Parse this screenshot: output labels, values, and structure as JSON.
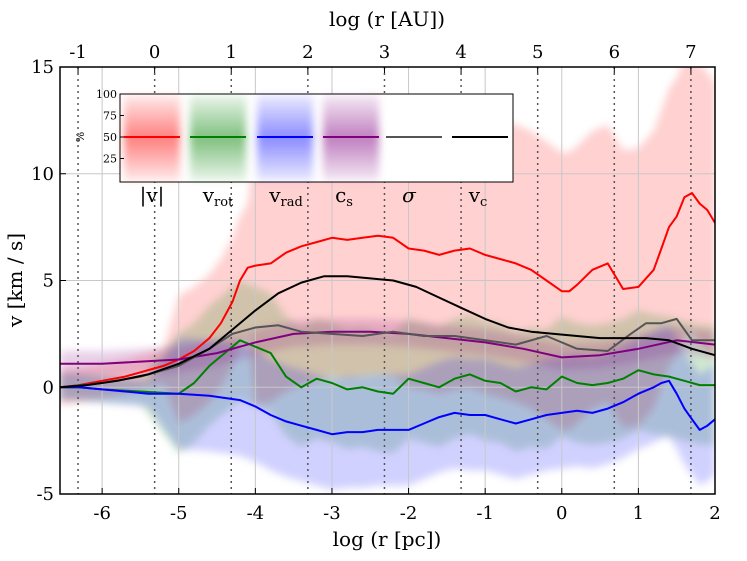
{
  "chart_data": {
    "type": "line",
    "xlabel": "log (r [pc])",
    "ylabel": "v [km / s]",
    "top_xlabel": "log (r [AU])",
    "xlim": [
      -6.55,
      2.0
    ],
    "ylim": [
      -5,
      15
    ],
    "grid": true,
    "xticks": [
      -6,
      -5,
      -4,
      -3,
      -2,
      -1,
      0,
      1,
      2
    ],
    "yticks": [
      -5,
      0,
      5,
      10,
      15
    ],
    "top_ticks": [
      -1,
      0,
      1,
      2,
      3,
      4,
      5,
      6,
      7
    ],
    "top_tick_offset_pc": -5.3145,
    "vertical_dotted_lines": [
      -6.3145,
      -5.3145,
      -4.3145,
      -3.3145,
      -2.3145,
      -1.3145,
      -0.3145,
      0.6855,
      1.6855
    ],
    "series": [
      {
        "name": "|v|",
        "color": "#ff0000",
        "x": [
          -6.55,
          -6.3,
          -6.0,
          -5.7,
          -5.5,
          -5.2,
          -5.0,
          -4.8,
          -4.6,
          -4.45,
          -4.3,
          -4.2,
          -4.1,
          -4.0,
          -3.8,
          -3.6,
          -3.4,
          -3.2,
          -3.0,
          -2.8,
          -2.6,
          -2.4,
          -2.2,
          -2.0,
          -1.8,
          -1.6,
          -1.4,
          -1.2,
          -1.0,
          -0.8,
          -0.6,
          -0.4,
          -0.2,
          0.0,
          0.1,
          0.2,
          0.4,
          0.6,
          0.8,
          1.0,
          1.2,
          1.3,
          1.4,
          1.5,
          1.6,
          1.7,
          1.8,
          1.9,
          2.0
        ],
        "y": [
          0.0,
          0.1,
          0.3,
          0.5,
          0.7,
          1.0,
          1.3,
          1.7,
          2.3,
          3.0,
          4.0,
          5.0,
          5.6,
          5.7,
          5.8,
          6.3,
          6.6,
          6.8,
          7.0,
          6.9,
          7.0,
          7.1,
          7.0,
          6.5,
          6.4,
          6.2,
          6.4,
          6.5,
          6.2,
          6.0,
          5.8,
          5.5,
          5.0,
          4.5,
          4.5,
          4.8,
          5.5,
          5.8,
          4.6,
          4.7,
          5.5,
          6.5,
          7.5,
          8.0,
          8.9,
          9.1,
          8.6,
          8.3,
          7.7
        ]
      },
      {
        "name": "v_rot",
        "color": "#008000",
        "x": [
          -6.55,
          -6.3,
          -6.0,
          -5.5,
          -5.0,
          -4.8,
          -4.6,
          -4.4,
          -4.2,
          -4.0,
          -3.8,
          -3.6,
          -3.4,
          -3.2,
          -3.0,
          -2.8,
          -2.6,
          -2.4,
          -2.2,
          -2.0,
          -1.8,
          -1.6,
          -1.4,
          -1.2,
          -1.0,
          -0.8,
          -0.6,
          -0.4,
          -0.2,
          0.0,
          0.2,
          0.4,
          0.6,
          0.8,
          1.0,
          1.2,
          1.4,
          1.6,
          1.8,
          2.0
        ],
        "y": [
          0.0,
          0.0,
          -0.1,
          -0.2,
          -0.3,
          0.2,
          1.0,
          1.6,
          2.2,
          1.9,
          1.6,
          0.5,
          0.0,
          0.4,
          0.2,
          -0.1,
          0.0,
          -0.2,
          -0.3,
          0.4,
          0.2,
          0.0,
          0.4,
          0.6,
          0.3,
          0.2,
          -0.2,
          0.0,
          -0.1,
          0.5,
          0.2,
          0.1,
          0.2,
          0.4,
          0.8,
          0.6,
          0.5,
          0.3,
          0.1,
          0.1
        ]
      },
      {
        "name": "v_rad",
        "color": "#0000ff",
        "x": [
          -6.55,
          -6.3,
          -6.0,
          -5.7,
          -5.4,
          -5.0,
          -4.6,
          -4.2,
          -4.0,
          -3.8,
          -3.6,
          -3.4,
          -3.2,
          -3.0,
          -2.8,
          -2.6,
          -2.4,
          -2.2,
          -2.0,
          -1.8,
          -1.6,
          -1.4,
          -1.2,
          -1.0,
          -0.8,
          -0.6,
          -0.4,
          -0.2,
          0.0,
          0.2,
          0.4,
          0.6,
          0.8,
          1.0,
          1.2,
          1.3,
          1.4,
          1.5,
          1.6,
          1.7,
          1.8,
          1.9,
          2.0
        ],
        "y": [
          0.0,
          0.0,
          -0.1,
          -0.2,
          -0.3,
          -0.3,
          -0.4,
          -0.6,
          -0.9,
          -1.3,
          -1.6,
          -1.8,
          -2.0,
          -2.2,
          -2.1,
          -2.1,
          -2.0,
          -2.0,
          -2.0,
          -1.7,
          -1.4,
          -1.2,
          -1.3,
          -1.3,
          -1.5,
          -1.7,
          -1.5,
          -1.3,
          -1.2,
          -1.1,
          -1.2,
          -1.0,
          -0.7,
          -0.3,
          0.0,
          0.2,
          0.3,
          -0.3,
          -1.0,
          -1.5,
          -2.0,
          -1.8,
          -1.5
        ]
      },
      {
        "name": "c_s",
        "color": "#800080",
        "x": [
          -6.55,
          -6.0,
          -5.5,
          -5.0,
          -4.5,
          -4.0,
          -3.5,
          -3.0,
          -2.5,
          -2.0,
          -1.5,
          -1.0,
          -0.5,
          0.0,
          0.5,
          1.0,
          1.5,
          2.0
        ],
        "y": [
          1.1,
          1.1,
          1.2,
          1.3,
          1.6,
          2.1,
          2.5,
          2.6,
          2.6,
          2.5,
          2.3,
          2.1,
          1.8,
          1.4,
          1.5,
          1.8,
          2.2,
          2.0
        ]
      },
      {
        "name": "σ",
        "color": "#555555",
        "x": [
          -6.55,
          -6.0,
          -5.5,
          -5.0,
          -4.6,
          -4.3,
          -4.0,
          -3.7,
          -3.4,
          -3.0,
          -2.6,
          -2.2,
          -1.8,
          -1.4,
          -1.0,
          -0.6,
          -0.2,
          0.2,
          0.6,
          0.9,
          1.1,
          1.3,
          1.5,
          1.7,
          2.0
        ],
        "y": [
          0.0,
          0.2,
          0.5,
          1.0,
          1.8,
          2.5,
          2.8,
          2.9,
          2.6,
          2.5,
          2.4,
          2.6,
          2.4,
          2.4,
          2.2,
          2.0,
          2.4,
          1.8,
          1.7,
          2.5,
          3.0,
          3.0,
          3.2,
          2.2,
          2.2
        ]
      },
      {
        "name": "v_c",
        "color": "#000000",
        "x": [
          -6.55,
          -6.2,
          -5.8,
          -5.4,
          -5.0,
          -4.6,
          -4.3,
          -4.0,
          -3.7,
          -3.4,
          -3.1,
          -2.8,
          -2.5,
          -2.2,
          -1.9,
          -1.6,
          -1.3,
          -1.0,
          -0.7,
          -0.4,
          -0.1,
          0.2,
          0.5,
          0.8,
          1.1,
          1.4,
          1.7,
          2.0
        ],
        "y": [
          0.0,
          0.1,
          0.3,
          0.6,
          1.1,
          1.8,
          2.7,
          3.6,
          4.4,
          4.9,
          5.2,
          5.2,
          5.1,
          5.0,
          4.7,
          4.2,
          3.7,
          3.2,
          2.8,
          2.6,
          2.5,
          2.4,
          2.3,
          2.3,
          2.3,
          2.2,
          1.8,
          1.5
        ]
      }
    ],
    "shaded_band_scale": {
      "label": "%",
      "ticks": [
        25,
        50,
        75,
        100
      ]
    }
  }
}
